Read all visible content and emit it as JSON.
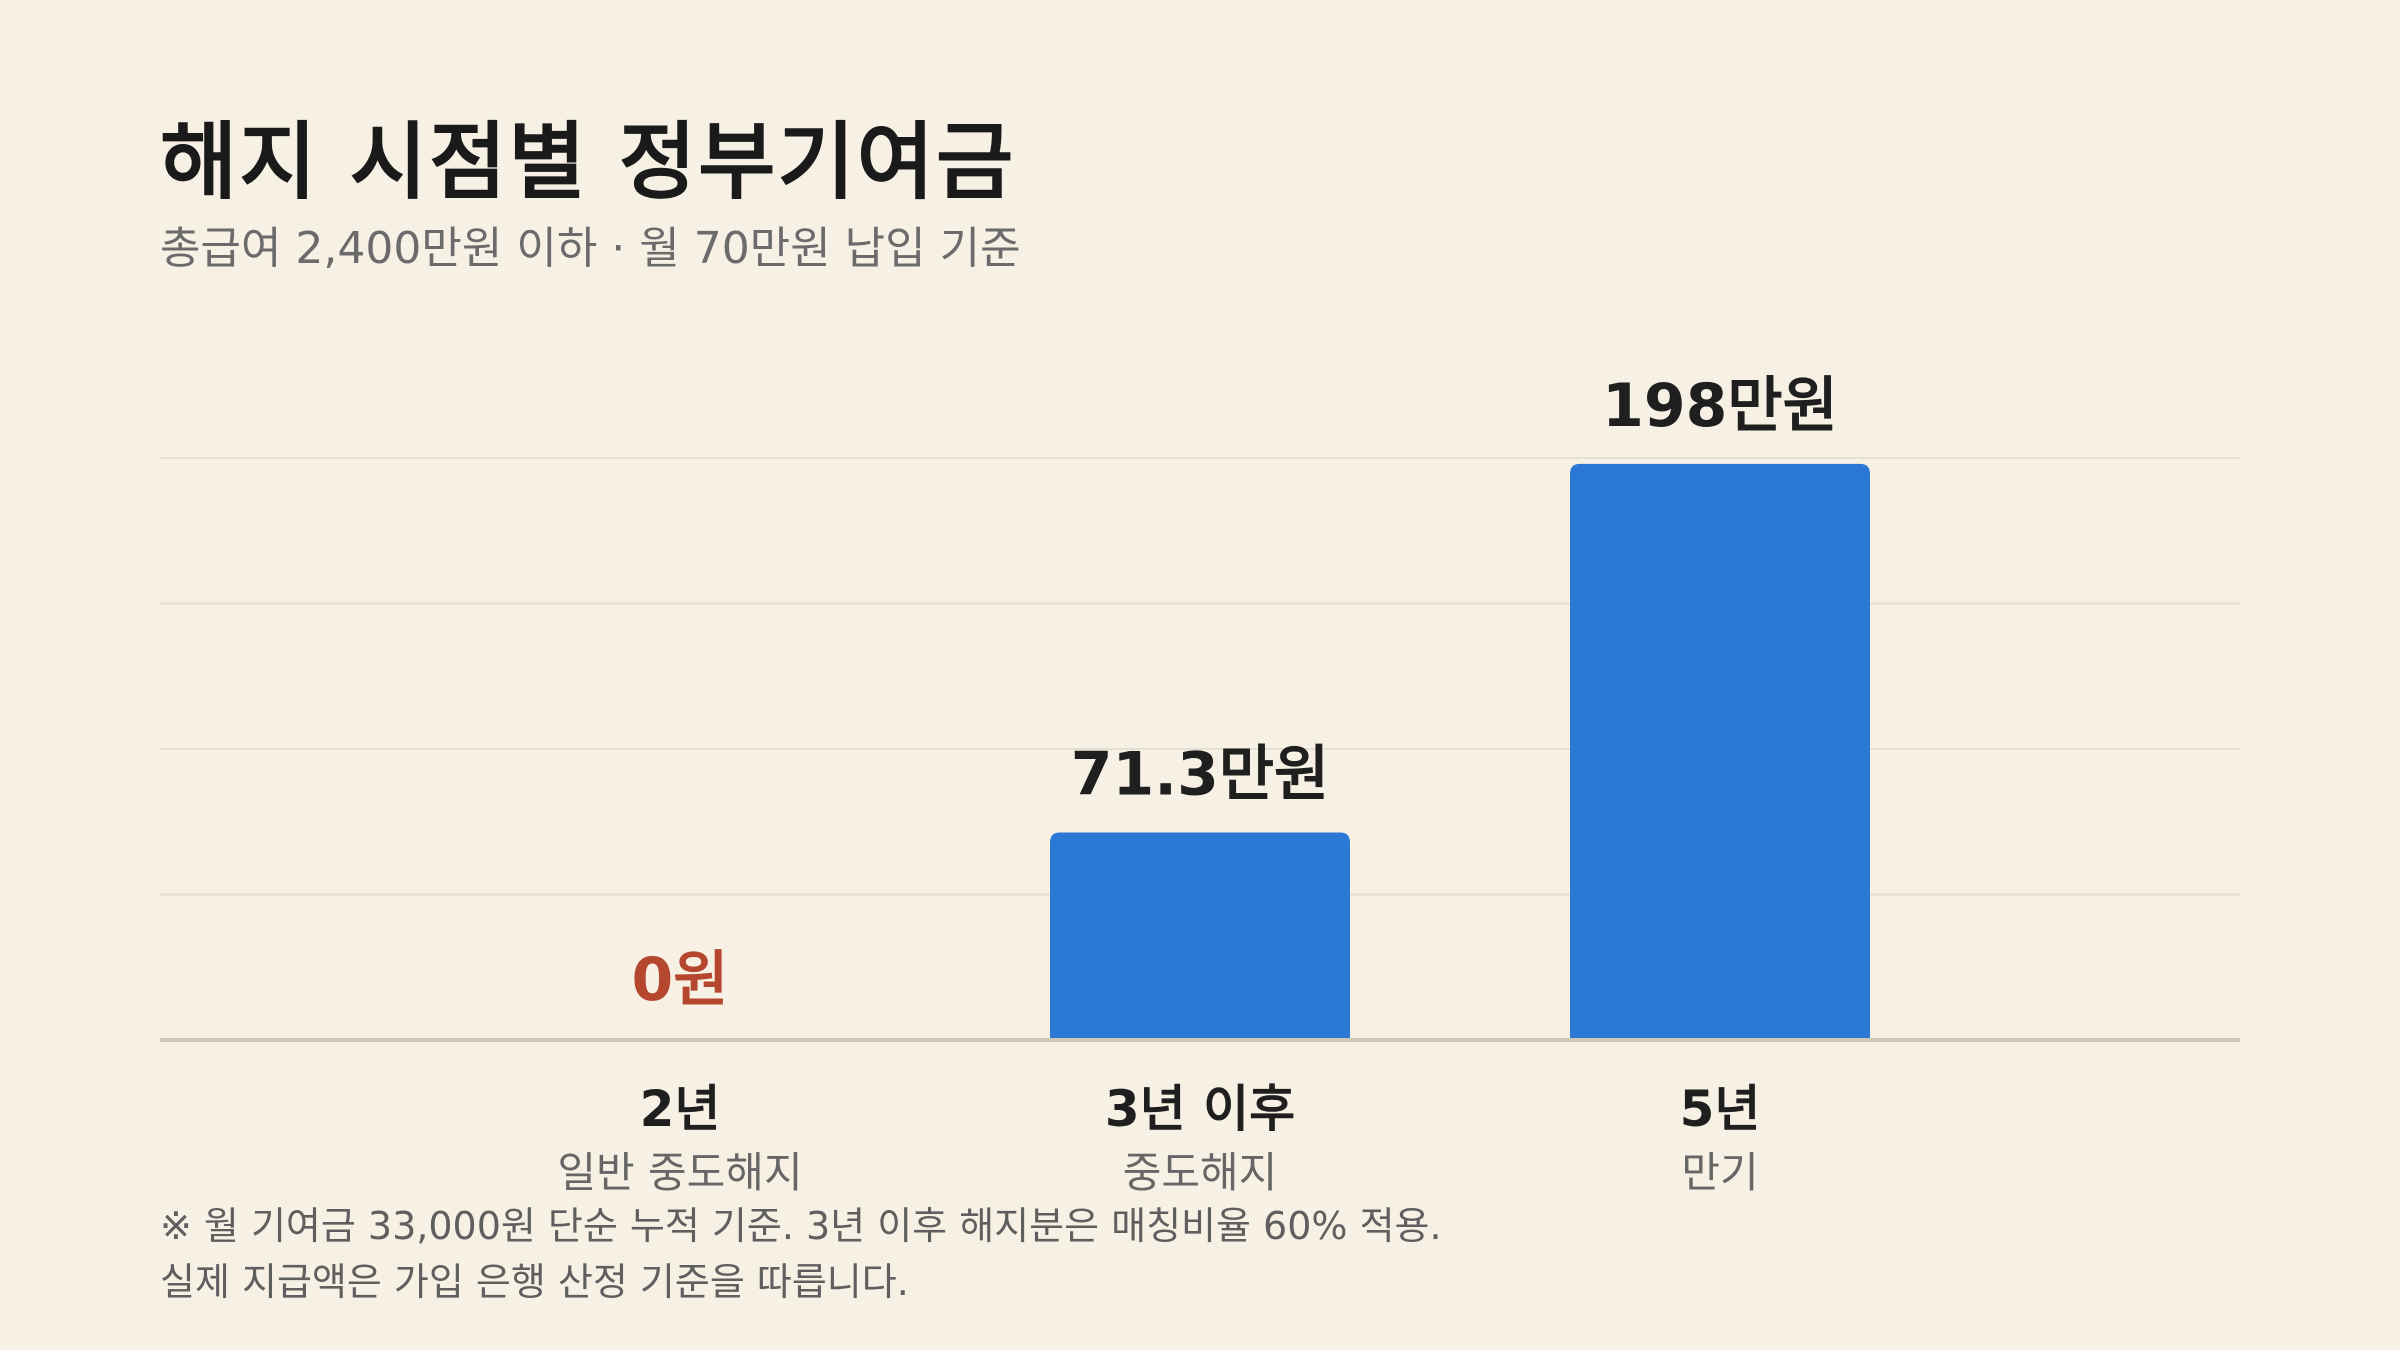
{
  "title": "해지 시점별 정부기여금",
  "subtitle": "총급여 2,400만원 이하 · 월 70만원 납입 기준",
  "colors": {
    "background": "#f7f1e5",
    "bar": "#2b78d6",
    "zero_label": "#b5472f",
    "value_label": "#1f1f1f",
    "grid": "#e6e0d2",
    "baseline": "#cfc7b4",
    "category_sub": "#666666"
  },
  "chart_data": {
    "type": "bar",
    "categories": [
      "2년",
      "3년 이후",
      "5년"
    ],
    "category_sublabels": [
      "일반 중도해지",
      "중도해지",
      "만기"
    ],
    "values": [
      0,
      71.3,
      198
    ],
    "value_labels": [
      "0원",
      "71.3만원",
      "198만원"
    ],
    "unit": "만원",
    "ylim": [
      0,
      200
    ],
    "grid": true,
    "xlabel": "",
    "ylabel": ""
  },
  "footnote": {
    "line1": "※ 월 기여금 33,000원 단순 누적 기준. 3년 이후 해지분은 매칭비율 60% 적용.",
    "line2": "실제 지급액은 가입 은행 산정 기준을 따릅니다."
  }
}
